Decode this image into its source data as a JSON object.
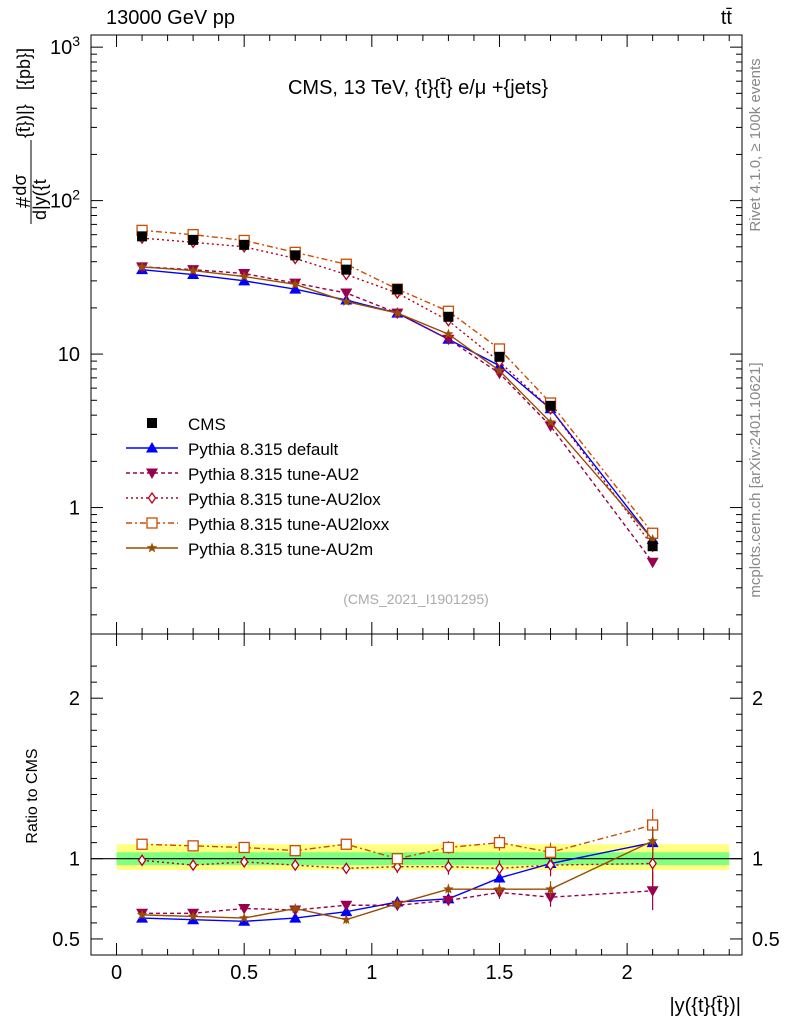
{
  "header": {
    "energy_label": "13000 GeV pp",
    "process_label": "tt̄"
  },
  "side_labels": {
    "rivet": "Rivet 4.1.0, ≥ 100k events",
    "mcplots": "mcplots.cern.ch [arXiv:2401.10621]"
  },
  "colors": {
    "cms": "#000000",
    "default": "#0000ff",
    "au2": "#99004d",
    "au2lox": "#b3001a",
    "au2loxx": "#cc4d00",
    "au2m": "#994d00",
    "band_outer": "#ffff80",
    "band_inner": "#80ff80"
  },
  "chart_data": {
    "type": "line",
    "title": "CMS, 13 TeV, {t}{t̄} e/μ +{jets}",
    "watermark": "(CMS_2021_I1901295)",
    "xlabel": "|y({t}{t̄})|",
    "ylabel_main": "#dσ/d|y({t}{t̄})| [pb]",
    "ylabel_prefix": "#",
    "ylabel_num": "dσ",
    "ylabel_den": "d|y({t",
    "ylabel_mid": "{t̄})|}",
    "ylabel_unit": "[{pb}]",
    "ylabel_ratio": "Ratio to CMS",
    "xlim": [
      -0.1,
      2.45
    ],
    "ylim_main": [
      0.15,
      1200
    ],
    "ylim_ratio": [
      0.4,
      2.4
    ],
    "x_ticks": [
      "0",
      "0.5",
      "1",
      "1.5",
      "2"
    ],
    "x_tick_values": [
      0,
      0.5,
      1,
      1.5,
      2
    ],
    "y_ticks_main": [
      {
        "value": 1000,
        "base": "10",
        "exp": "3"
      },
      {
        "value": 100,
        "base": "10",
        "exp": "2"
      },
      {
        "value": 10,
        "base": "10",
        "exp": ""
      },
      {
        "value": 1,
        "base": "1",
        "exp": ""
      }
    ],
    "y_ticks_ratio": [
      {
        "value": 2,
        "label": "2"
      },
      {
        "value": 1,
        "label": "1"
      },
      {
        "value": 0.5,
        "label": "0.5"
      }
    ],
    "x": [
      0.1,
      0.3,
      0.5,
      0.7,
      0.9,
      1.1,
      1.3,
      1.5,
      1.7,
      2.1
    ],
    "data": {
      "name": "CMS",
      "values": [
        58.5,
        55.5,
        51.5,
        44.0,
        35.5,
        26.5,
        17.5,
        9.6,
        4.6,
        0.56
      ],
      "errors": [
        2.5,
        2.5,
        2.3,
        2.0,
        1.6,
        1.2,
        0.8,
        0.5,
        0.25,
        0.04
      ]
    },
    "series": [
      {
        "key": "default",
        "name": "Pythia 8.315 default",
        "marker": "triangle-up",
        "dash": "",
        "values": [
          35.5,
          33.0,
          30.0,
          26.5,
          22.5,
          18.5,
          12.5,
          8.4,
          4.4,
          0.62
        ],
        "ratio": [
          0.63,
          0.62,
          0.61,
          0.63,
          0.67,
          0.73,
          0.75,
          0.88,
          0.97,
          1.1
        ],
        "ratio_err": [
          0.01,
          0.01,
          0.01,
          0.01,
          0.015,
          0.02,
          0.025,
          0.03,
          0.04,
          0.08
        ]
      },
      {
        "key": "au2",
        "name": "Pythia 8.315 tune-AU2",
        "marker": "triangle-down",
        "dash": "4,3",
        "values": [
          37.0,
          35.5,
          33.5,
          29.0,
          25.0,
          18.5,
          12.5,
          7.5,
          3.4,
          0.44
        ],
        "ratio": [
          0.66,
          0.66,
          0.69,
          0.68,
          0.71,
          0.71,
          0.74,
          0.79,
          0.76,
          0.8
        ],
        "ratio_err": [
          0.02,
          0.02,
          0.02,
          0.025,
          0.025,
          0.03,
          0.03,
          0.04,
          0.06,
          0.12
        ]
      },
      {
        "key": "au2lox",
        "name": "Pythia 8.315 tune-AU2lox",
        "marker": "diamond-open",
        "dash": "2,3",
        "values": [
          57.0,
          53.5,
          50.0,
          42.0,
          33.0,
          25.0,
          16.5,
          8.9,
          4.4,
          0.56
        ],
        "ratio": [
          0.99,
          0.96,
          0.98,
          0.96,
          0.94,
          0.95,
          0.95,
          0.94,
          0.96,
          0.97
        ],
        "ratio_err": [
          0.025,
          0.025,
          0.025,
          0.03,
          0.03,
          0.04,
          0.05,
          0.05,
          0.07,
          0.14
        ]
      },
      {
        "key": "au2loxx",
        "name": "Pythia 8.315 tune-AU2loxx",
        "marker": "square-open",
        "dash": "6,3,2,3",
        "values": [
          64.0,
          60.0,
          55.0,
          46.0,
          38.5,
          26.5,
          19.0,
          10.8,
          4.8,
          0.68
        ],
        "ratio": [
          1.09,
          1.08,
          1.07,
          1.05,
          1.09,
          1.0,
          1.07,
          1.1,
          1.04,
          1.21
        ],
        "ratio_err": [
          0.02,
          0.02,
          0.02,
          0.025,
          0.03,
          0.03,
          0.04,
          0.05,
          0.06,
          0.1
        ]
      },
      {
        "key": "au2m",
        "name": "Pythia 8.315 tune-AU2m",
        "marker": "star",
        "dash": "",
        "values": [
          37.0,
          35.0,
          32.0,
          28.5,
          22.0,
          18.5,
          13.5,
          7.8,
          3.6,
          0.62
        ],
        "ratio": [
          0.65,
          0.64,
          0.63,
          0.69,
          0.62,
          0.72,
          0.81,
          0.81,
          0.81,
          1.11
        ],
        "ratio_err": [
          0.015,
          0.015,
          0.015,
          0.02,
          0.025,
          0.03,
          0.03,
          0.035,
          0.05,
          0.09
        ]
      }
    ],
    "uncertainty_band": {
      "outer": [
        0.93,
        1.09
      ],
      "inner": [
        0.96,
        1.04
      ]
    },
    "legend": {
      "position": "lower-left",
      "entries": [
        "CMS",
        "Pythia 8.315 default",
        "Pythia 8.315 tune-AU2",
        "Pythia 8.315 tune-AU2lox",
        "Pythia 8.315 tune-AU2loxx",
        "Pythia 8.315 tune-AU2m"
      ]
    }
  }
}
